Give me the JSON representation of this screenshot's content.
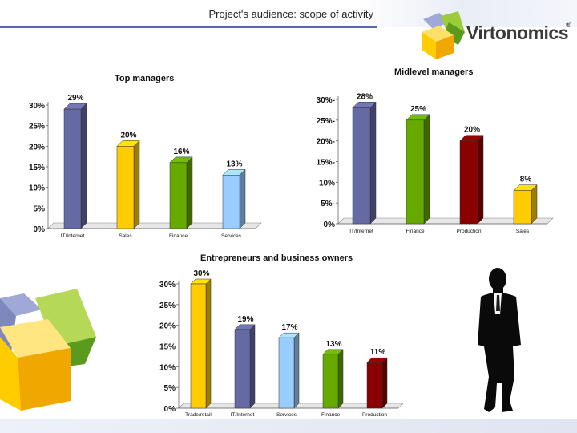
{
  "header": {
    "title": "Project's audience: scope of activity"
  },
  "logo": {
    "text": "Virtonomics",
    "mark": "®"
  },
  "colors": {
    "blue": "#666aa4",
    "yellow": "#ffcc00",
    "green": "#66aa00",
    "darkred": "#8b0000",
    "lightblue": "#99ccff"
  },
  "icons": [
    "virtonomics-cube-logo-icon",
    "decorative-cubes-icon",
    "businessman-silhouette-icon"
  ],
  "chart_data": [
    {
      "type": "bar",
      "title": "Top managers",
      "categories": [
        "IT/Internet",
        "Sales",
        "Finance",
        "Services"
      ],
      "values": [
        29,
        20,
        16,
        13
      ],
      "labels": [
        "29%",
        "20%",
        "16%",
        "13%"
      ],
      "colors": [
        "#666aa4",
        "#ffcc00",
        "#66aa00",
        "#99ccff"
      ],
      "yticks": [
        "0%",
        "5%",
        "10%",
        "15%",
        "20%",
        "25%",
        "30%"
      ],
      "ylim": [
        0,
        30
      ],
      "grid": false,
      "legend": "none"
    },
    {
      "type": "bar",
      "title": "Midlevel managers",
      "categories": [
        "IT/Internet",
        "Finance",
        "Production",
        "Sales"
      ],
      "values": [
        28,
        25,
        20,
        8
      ],
      "labels": [
        "28%",
        "25%",
        "20%",
        "8%"
      ],
      "colors": [
        "#666aa4",
        "#66aa00",
        "#8b0000",
        "#ffcc00"
      ],
      "yticks": [
        "0%",
        "5%-",
        "10%",
        "15%-",
        "20%-",
        "25%-",
        "30%-"
      ],
      "ylim": [
        0,
        30
      ],
      "grid": false,
      "legend": "none"
    },
    {
      "type": "bar",
      "title": "Entrepreneurs and business owners",
      "categories": [
        "Trade/retail",
        "IT/Internet",
        "Services",
        "Finance",
        "Production"
      ],
      "values": [
        30,
        19,
        17,
        13,
        11
      ],
      "labels": [
        "30%",
        "19%",
        "17%",
        "13%",
        "11%"
      ],
      "colors": [
        "#ffcc00",
        "#666aa4",
        "#99ccff",
        "#66aa00",
        "#8b0000"
      ],
      "yticks": [
        "0%",
        "5%",
        "10%",
        "15%",
        "20%",
        "25%",
        "30%"
      ],
      "ylim": [
        0,
        30
      ],
      "grid": false,
      "legend": "none"
    }
  ]
}
